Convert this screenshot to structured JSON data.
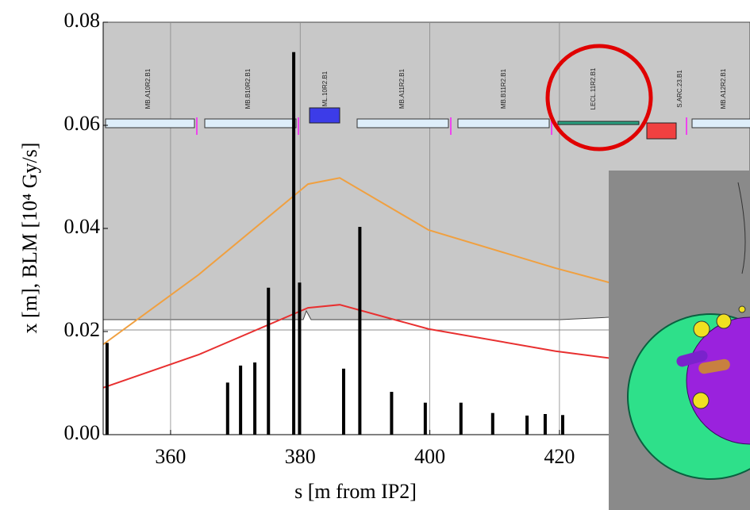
{
  "chart_data": {
    "type": "bar",
    "x_label": "s [m from IP2]",
    "y_label": "x [m],  BLM [10⁴ Gy/s]",
    "xlim": [
      349.6,
      449.4
    ],
    "ylim": [
      0,
      0.08
    ],
    "xticks": [
      360,
      380,
      400,
      420
    ],
    "yticks": [
      {
        "value": 0,
        "label": "0.00"
      },
      {
        "value": 0.02,
        "label": "0.02"
      },
      {
        "value": 0.04,
        "label": "0.04"
      },
      {
        "value": 0.06,
        "label": "0.06"
      },
      {
        "value": 0.08,
        "label": "0.08"
      }
    ],
    "grid": true,
    "color": "#000000",
    "x": [
      350.2,
      368.8,
      370.8,
      373.0,
      375.1,
      379.0,
      379.9,
      386.7,
      389.2,
      394.1,
      399.3,
      404.8,
      409.7,
      415.0,
      417.8,
      420.5
    ],
    "values": [
      0.0178,
      0.0101,
      0.0134,
      0.014,
      0.0285,
      0.0742,
      0.0295,
      0.0128,
      0.0403,
      0.0083,
      0.0062,
      0.0062,
      0.0042,
      0.0037,
      0.004,
      0.0038
    ],
    "lines": [
      {
        "type": "line",
        "color": "#f0a040",
        "x": [
          349.6,
          364.3,
          381.2,
          386.1,
          399.8,
          419.4,
          428.0
        ],
        "values": [
          0.0175,
          0.031,
          0.0486,
          0.0498,
          0.0397,
          0.0323,
          0.0294
        ]
      },
      {
        "type": "line",
        "color": "#e83030",
        "x": [
          349.6,
          364.3,
          381.2,
          386.1,
          399.8,
          419.4,
          428.0
        ],
        "values": [
          0.0091,
          0.0155,
          0.0246,
          0.0252,
          0.0205,
          0.0162,
          0.0148
        ]
      }
    ],
    "elements": [
      {
        "label": "MB.A10R2.B1",
        "color": "#222222"
      },
      {
        "label": "MB.B10R2.B1",
        "color": "#222222"
      },
      {
        "label": "ML.10R2.B1",
        "color": "#4a4ae0"
      },
      {
        "label": "MB.A11R2.B1",
        "color": "#222222"
      },
      {
        "label": "MB.B11R2.B1",
        "color": "#222222"
      },
      {
        "label": "LECL.11R2.B1",
        "color": "#222222"
      },
      {
        "label": "S.ARC.23.B1",
        "color": "#e03030"
      },
      {
        "label": "MB.A12R2.B1",
        "color": "#222222"
      }
    ]
  }
}
